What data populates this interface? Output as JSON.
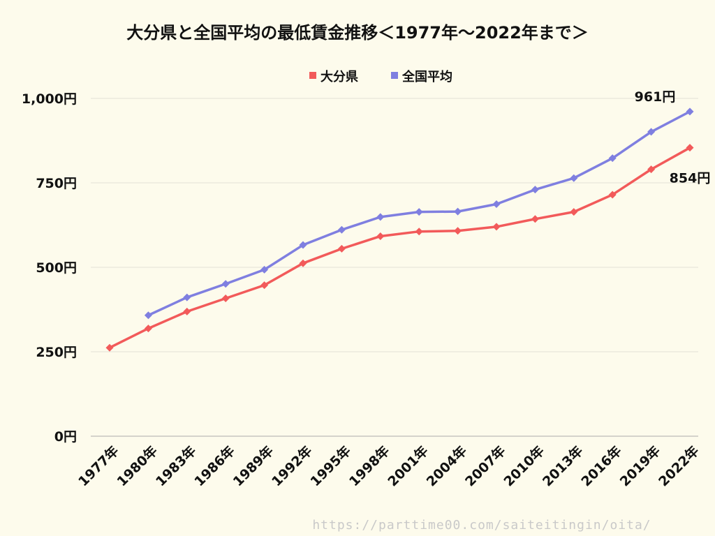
{
  "chart_data": {
    "type": "line",
    "title": "大分県と全国平均の最低賃金推移＜1977年〜2022年まで＞",
    "xlabel": "",
    "ylabel": "",
    "categories": [
      "1977年",
      "1980年",
      "1983年",
      "1986年",
      "1989年",
      "1992年",
      "1995年",
      "1998年",
      "2001年",
      "2004年",
      "2007年",
      "2010年",
      "2013年",
      "2016年",
      "2019年",
      "2022年"
    ],
    "y_ticks": [
      "0円",
      "250円",
      "500円",
      "750円",
      "1,000円"
    ],
    "ylim": [
      0,
      1000
    ],
    "grid": true,
    "legend_position": "top",
    "series": [
      {
        "name": "大分県",
        "color": "#f25a5a",
        "values": [
          262,
          319,
          369,
          408,
          447,
          512,
          555,
          592,
          606,
          608,
          620,
          643,
          664,
          715,
          790,
          854
        ]
      },
      {
        "name": "全国平均",
        "color": "#7f7fe0",
        "values": [
          null,
          358,
          411,
          451,
          493,
          566,
          611,
          649,
          664,
          665,
          687,
          730,
          764,
          823,
          901,
          961
        ]
      }
    ],
    "annotations": [
      {
        "text": "961円",
        "series": 1,
        "index": 15
      },
      {
        "text": "854円",
        "series": 0,
        "index": 15
      }
    ]
  },
  "footer": {
    "url": "https://parttime00.com/saiteitingin/oita/"
  }
}
